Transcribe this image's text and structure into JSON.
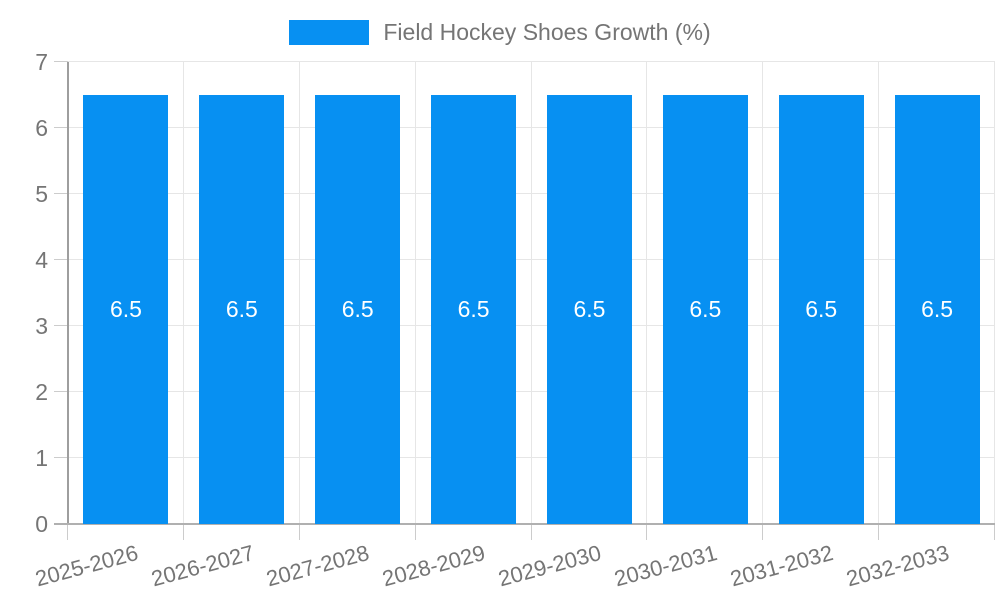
{
  "chart_data": {
    "type": "bar",
    "title": "Field Hockey Shoes Growth (%)",
    "categories": [
      "2025-2026",
      "2026-2027",
      "2027-2028",
      "2028-2029",
      "2029-2030",
      "2030-2031",
      "2031-2032",
      "2032-2033"
    ],
    "series": [
      {
        "name": "Field Hockey Shoes Growth (%)",
        "values": [
          6.5,
          6.5,
          6.5,
          6.5,
          6.5,
          6.5,
          6.5,
          6.5
        ]
      }
    ],
    "bar_value_labels": [
      "6.5",
      "6.5",
      "6.5",
      "6.5",
      "6.5",
      "6.5",
      "6.5",
      "6.5"
    ],
    "xlabel": "",
    "ylabel": "",
    "ylim": [
      0,
      7
    ],
    "yticks": [
      0,
      1,
      2,
      3,
      4,
      5,
      6,
      7
    ],
    "grid": true,
    "legend_position": "top-center",
    "x_label_rotation_deg": -15,
    "colors": {
      "bar": "#0790f2",
      "bar_label_text": "#ffffff",
      "axis_text": "#757575",
      "axis_line": "#9e9e9e",
      "baseline": "#b0b0b0",
      "gridline": "#e6e6e6",
      "tick": "#cccccc",
      "background": "#ffffff"
    }
  }
}
